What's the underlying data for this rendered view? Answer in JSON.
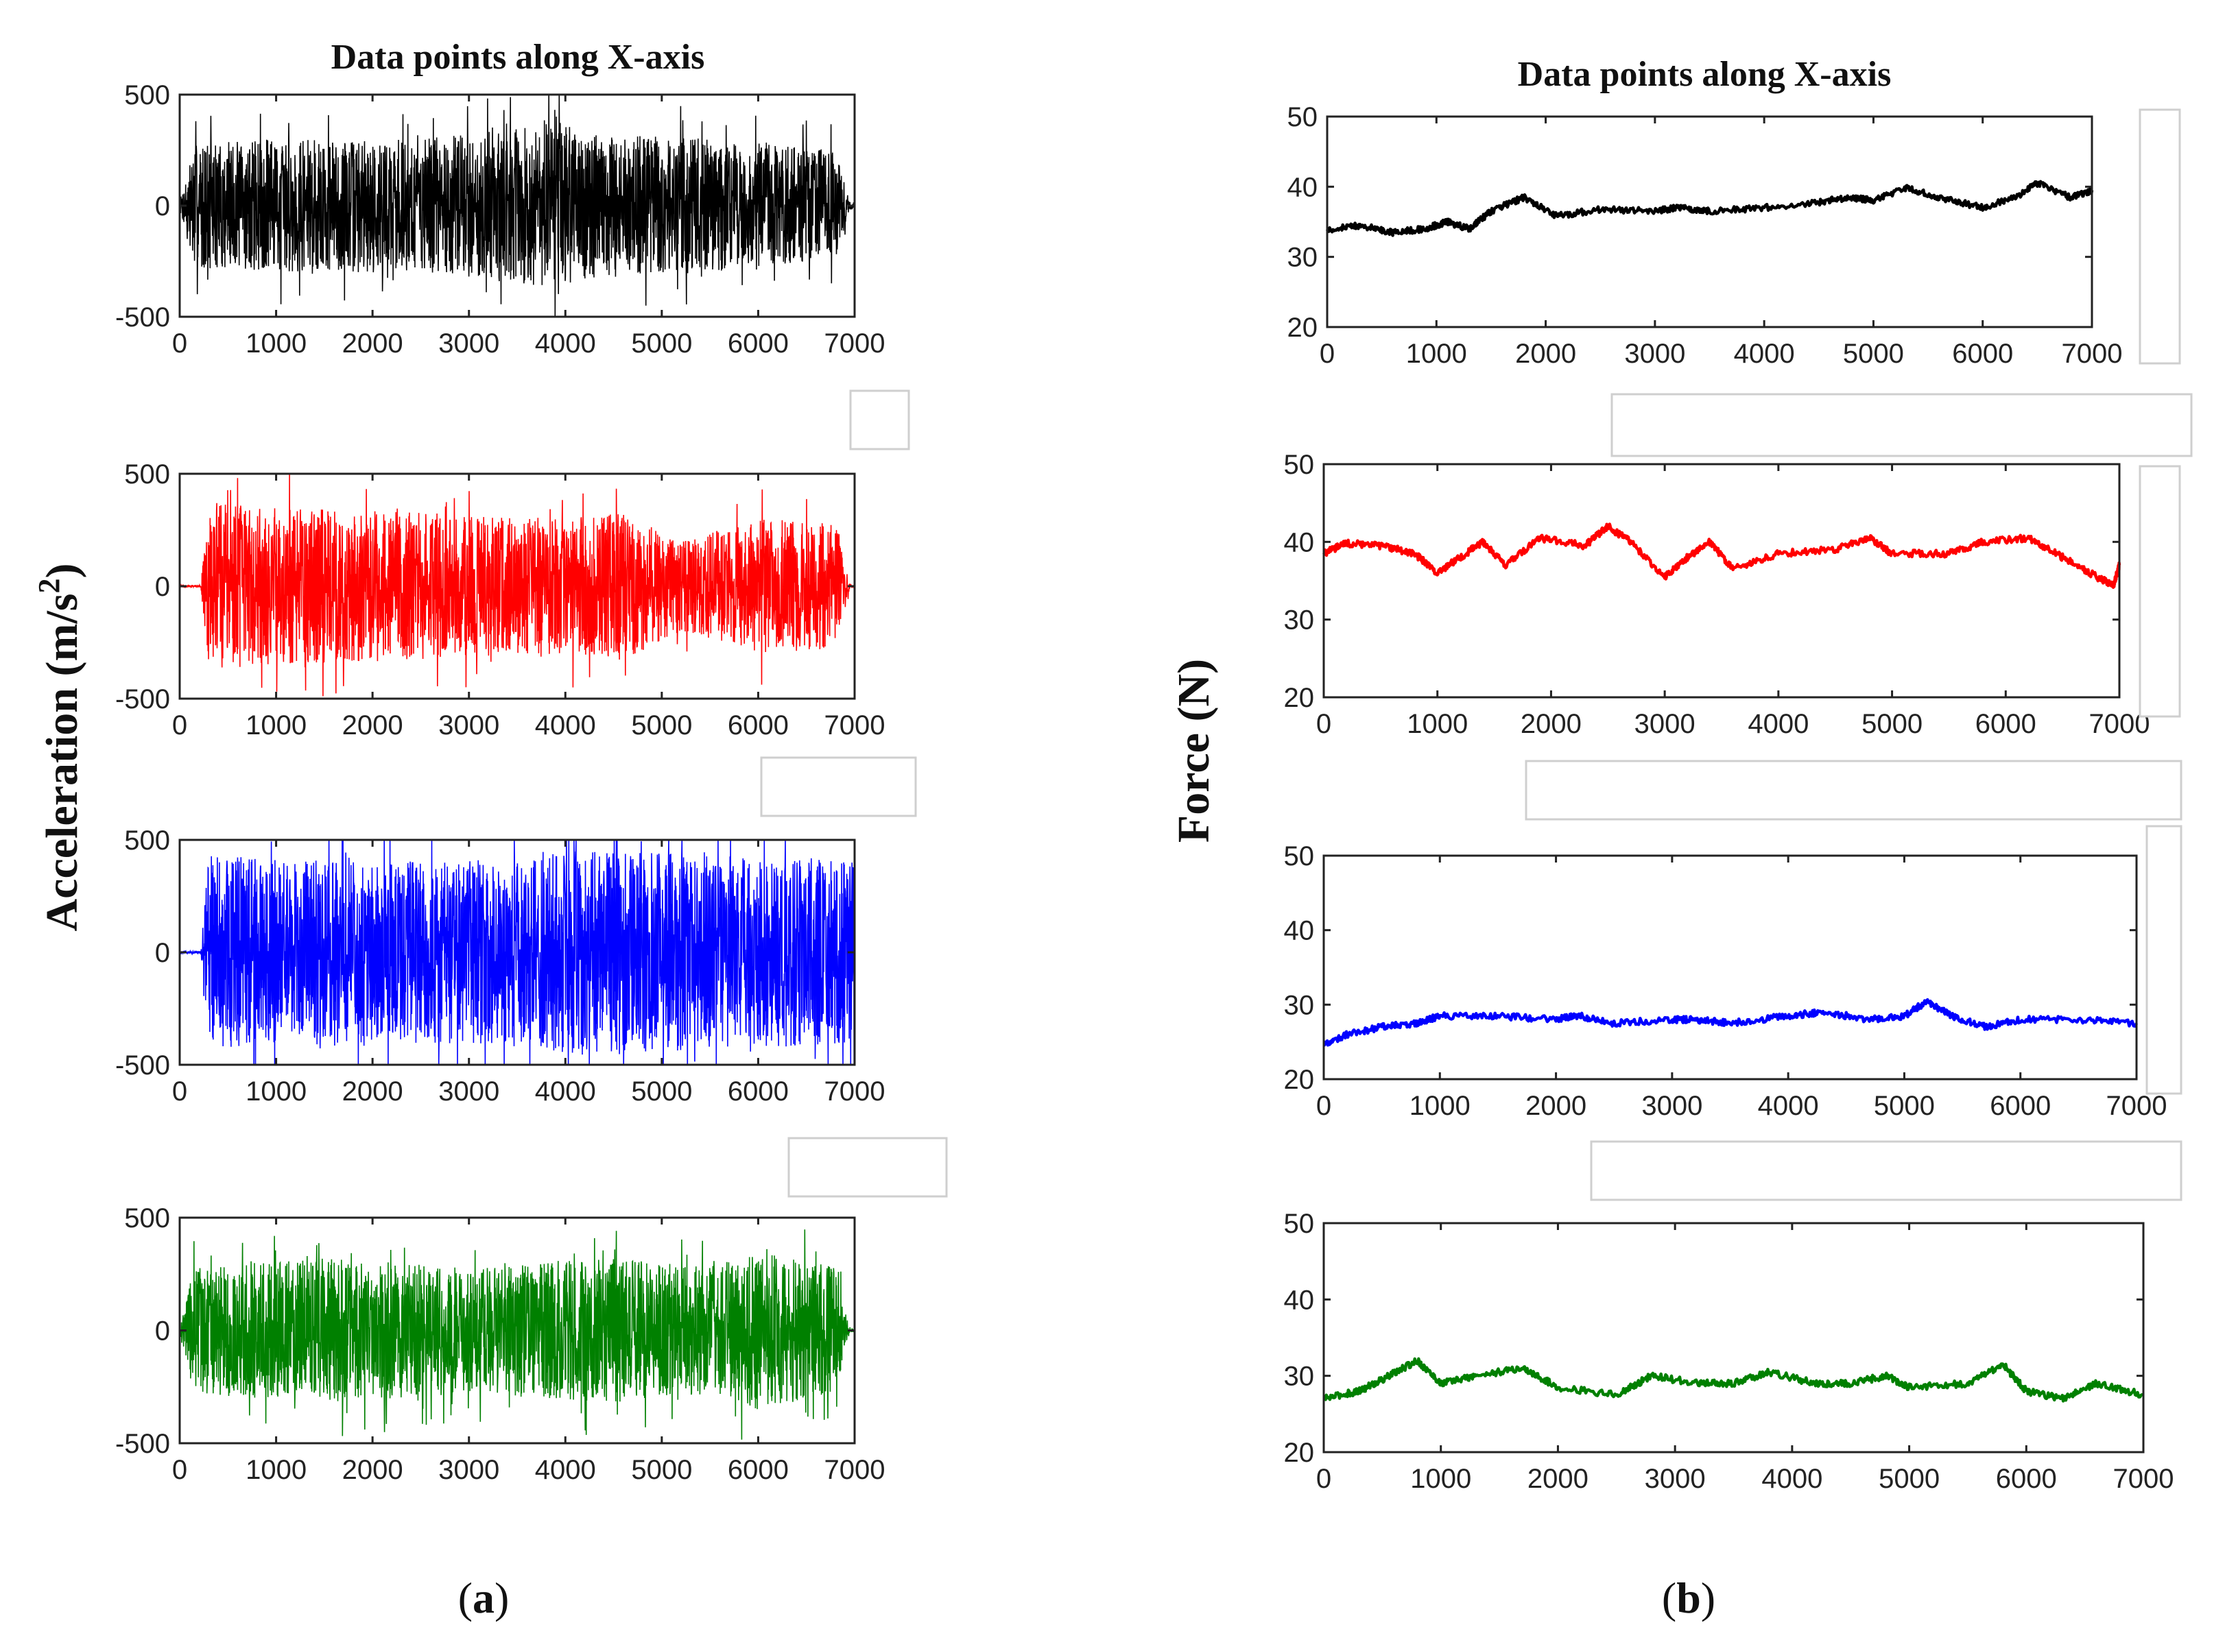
{
  "figure": {
    "panel_a_label": "a",
    "panel_b_label": "b"
  },
  "chart_data": [
    {
      "id": "accel_black",
      "type": "line",
      "title": "Data points along X-axis",
      "ylabel": "Acceleration (m/s2)",
      "color": "#000000",
      "xlim": [
        0,
        7000
      ],
      "ylim": [
        -500,
        500
      ],
      "xticks": [
        0,
        1000,
        2000,
        3000,
        4000,
        5000,
        6000,
        7000
      ],
      "yticks": [
        -500,
        0,
        500
      ],
      "series": [
        {
          "name": "acceleration",
          "x_range": [
            0,
            7000
          ],
          "amplitude_profile": [
            [
              0,
              20
            ],
            [
              150,
              280
            ],
            [
              1000,
              300
            ],
            [
              2500,
              300
            ],
            [
              3700,
              360
            ],
            [
              3900,
              420
            ],
            [
              4100,
              330
            ],
            [
              5500,
              300
            ],
            [
              6800,
              250
            ],
            [
              6950,
              20
            ],
            [
              7000,
              10
            ]
          ]
        }
      ]
    },
    {
      "id": "accel_red",
      "type": "line",
      "color": "#ff0000",
      "xlim": [
        0,
        7000
      ],
      "ylim": [
        -500,
        500
      ],
      "xticks": [
        0,
        1000,
        2000,
        3000,
        4000,
        5000,
        6000,
        7000
      ],
      "yticks": [
        -500,
        0,
        500
      ],
      "series": [
        {
          "name": "acceleration",
          "x_range": [
            0,
            7000
          ],
          "amplitude_profile": [
            [
              0,
              5
            ],
            [
              220,
              5
            ],
            [
              300,
              380
            ],
            [
              800,
              350
            ],
            [
              2500,
              330
            ],
            [
              4000,
              300
            ],
            [
              4600,
              330
            ],
            [
              5200,
              200
            ],
            [
              6000,
              300
            ],
            [
              6800,
              280
            ],
            [
              6950,
              10
            ],
            [
              7000,
              5
            ]
          ]
        }
      ]
    },
    {
      "id": "accel_blue",
      "type": "line",
      "color": "#0000ff",
      "xlim": [
        0,
        7000
      ],
      "ylim": [
        -500,
        500
      ],
      "xticks": [
        0,
        1000,
        2000,
        3000,
        4000,
        5000,
        6000,
        7000
      ],
      "yticks": [
        -500,
        0,
        500
      ],
      "series": [
        {
          "name": "acceleration",
          "x_range": [
            0,
            7000
          ],
          "amplitude_profile": [
            [
              0,
              5
            ],
            [
              220,
              5
            ],
            [
              300,
              430
            ],
            [
              2000,
              400
            ],
            [
              3600,
              420
            ],
            [
              4200,
              460
            ],
            [
              6000,
              420
            ],
            [
              7000,
              420
            ]
          ]
        }
      ]
    },
    {
      "id": "accel_green",
      "type": "line",
      "color": "#008000",
      "xlim": [
        0,
        7000
      ],
      "ylim": [
        -500,
        500
      ],
      "xticks": [
        0,
        1000,
        2000,
        3000,
        4000,
        5000,
        6000,
        7000
      ],
      "yticks": [
        -500,
        0,
        500
      ],
      "series": [
        {
          "name": "acceleration",
          "x_range": [
            0,
            7000
          ],
          "amplitude_profile": [
            [
              0,
              20
            ],
            [
              150,
              280
            ],
            [
              1500,
              320
            ],
            [
              3000,
              280
            ],
            [
              4500,
              320
            ],
            [
              5500,
              280
            ],
            [
              6000,
              350
            ],
            [
              6800,
              280
            ],
            [
              6950,
              10
            ],
            [
              7000,
              5
            ]
          ]
        }
      ]
    },
    {
      "id": "force_black",
      "type": "line",
      "title": "Data points along X-axis",
      "ylabel": "Force (N)",
      "color": "#000000",
      "xlim": [
        0,
        7000
      ],
      "ylim": [
        20,
        50
      ],
      "xticks": [
        0,
        1000,
        2000,
        3000,
        4000,
        5000,
        6000,
        7000
      ],
      "yticks": [
        20,
        30,
        40,
        50
      ],
      "series": [
        {
          "name": "force",
          "points": [
            [
              0,
              33.8
            ],
            [
              300,
              34.5
            ],
            [
              600,
              33.5
            ],
            [
              900,
              34.0
            ],
            [
              1100,
              35.0
            ],
            [
              1300,
              34.0
            ],
            [
              1500,
              36.5
            ],
            [
              1800,
              38.5
            ],
            [
              2100,
              35.8
            ],
            [
              2500,
              36.8
            ],
            [
              3000,
              36.5
            ],
            [
              3200,
              37.0
            ],
            [
              3500,
              36.5
            ],
            [
              4000,
              37.0
            ],
            [
              4500,
              37.8
            ],
            [
              4800,
              38.5
            ],
            [
              5000,
              38.0
            ],
            [
              5300,
              39.8
            ],
            [
              5600,
              38.5
            ],
            [
              6000,
              37.0
            ],
            [
              6300,
              38.5
            ],
            [
              6500,
              40.5
            ],
            [
              6800,
              38.5
            ],
            [
              7000,
              39.5
            ]
          ]
        }
      ]
    },
    {
      "id": "force_red",
      "type": "line",
      "color": "#ff0000",
      "xlim": [
        0,
        7000
      ],
      "ylim": [
        20,
        50
      ],
      "xticks": [
        0,
        1000,
        2000,
        3000,
        4000,
        5000,
        6000,
        7000
      ],
      "yticks": [
        20,
        30,
        40,
        50
      ],
      "series": [
        {
          "name": "force",
          "points": [
            [
              0,
              38.5
            ],
            [
              200,
              39.8
            ],
            [
              500,
              39.5
            ],
            [
              800,
              38.5
            ],
            [
              1000,
              36.0
            ],
            [
              1200,
              38.0
            ],
            [
              1400,
              40.0
            ],
            [
              1600,
              37.0
            ],
            [
              1900,
              40.5
            ],
            [
              2300,
              39.5
            ],
            [
              2500,
              42.0
            ],
            [
              2700,
              40.0
            ],
            [
              3000,
              35.5
            ],
            [
              3200,
              38.0
            ],
            [
              3400,
              40.0
            ],
            [
              3600,
              36.5
            ],
            [
              4000,
              38.5
            ],
            [
              4500,
              39.0
            ],
            [
              4800,
              40.5
            ],
            [
              5000,
              38.5
            ],
            [
              5500,
              38.5
            ],
            [
              5800,
              40.0
            ],
            [
              6200,
              40.5
            ],
            [
              6500,
              38.0
            ],
            [
              6800,
              35.5
            ],
            [
              6950,
              34.5
            ],
            [
              7000,
              37.0
            ]
          ]
        }
      ]
    },
    {
      "id": "force_blue",
      "type": "line",
      "color": "#0000ff",
      "xlim": [
        0,
        7000
      ],
      "ylim": [
        20,
        50
      ],
      "xticks": [
        0,
        1000,
        2000,
        3000,
        4000,
        5000,
        6000,
        7000
      ],
      "yticks": [
        20,
        30,
        40,
        50
      ],
      "series": [
        {
          "name": "force",
          "points": [
            [
              0,
              24.5
            ],
            [
              200,
              26.0
            ],
            [
              500,
              27.0
            ],
            [
              800,
              27.5
            ],
            [
              1000,
              28.5
            ],
            [
              1500,
              28.5
            ],
            [
              2000,
              28.0
            ],
            [
              2200,
              28.5
            ],
            [
              2500,
              27.5
            ],
            [
              3000,
              28.0
            ],
            [
              3200,
              28.0
            ],
            [
              3500,
              27.5
            ],
            [
              4000,
              28.5
            ],
            [
              4300,
              29.0
            ],
            [
              4700,
              28.0
            ],
            [
              5000,
              28.5
            ],
            [
              5200,
              30.5
            ],
            [
              5400,
              28.5
            ],
            [
              5700,
              27.0
            ],
            [
              6000,
              28.0
            ],
            [
              6500,
              28.0
            ],
            [
              7000,
              27.5
            ]
          ]
        }
      ]
    },
    {
      "id": "force_green",
      "type": "line",
      "color": "#008000",
      "xlim": [
        0,
        7000
      ],
      "ylim": [
        20,
        50
      ],
      "xticks": [
        0,
        1000,
        2000,
        3000,
        4000,
        5000,
        6000,
        7000
      ],
      "yticks": [
        20,
        30,
        40,
        50
      ],
      "series": [
        {
          "name": "force",
          "points": [
            [
              0,
              27.0
            ],
            [
              300,
              28.0
            ],
            [
              500,
              29.5
            ],
            [
              800,
              32.0
            ],
            [
              1000,
              29.0
            ],
            [
              1300,
              30.0
            ],
            [
              1700,
              31.0
            ],
            [
              2000,
              28.5
            ],
            [
              2500,
              27.5
            ],
            [
              2800,
              30.0
            ],
            [
              3200,
              29.0
            ],
            [
              3500,
              29.0
            ],
            [
              3800,
              30.5
            ],
            [
              4200,
              29.0
            ],
            [
              4500,
              29.0
            ],
            [
              4800,
              30.0
            ],
            [
              5000,
              28.5
            ],
            [
              5500,
              29.0
            ],
            [
              5800,
              31.5
            ],
            [
              6000,
              28.0
            ],
            [
              6300,
              27.0
            ],
            [
              6600,
              29.0
            ],
            [
              7000,
              27.5
            ]
          ]
        }
      ]
    }
  ]
}
